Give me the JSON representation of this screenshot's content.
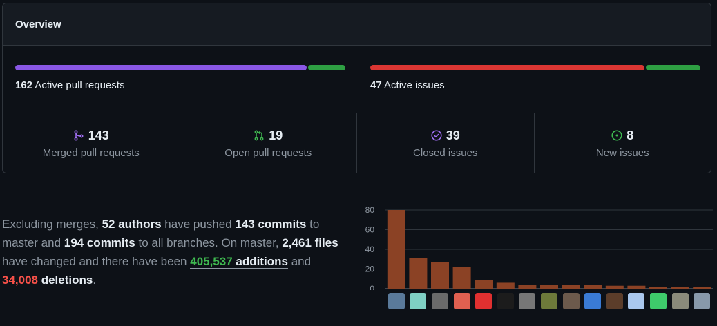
{
  "overview": {
    "title": "Overview",
    "pull_requests": {
      "count": "162",
      "label": "Active pull requests",
      "merged_fraction": 0.882,
      "colors": [
        "#8957e5",
        "#2ea043"
      ]
    },
    "issues": {
      "count": "47",
      "label": "Active issues",
      "closed_fraction": 0.83,
      "colors": [
        "#da3633",
        "#2ea043"
      ]
    },
    "stats": [
      {
        "value": "143",
        "label": "Merged pull requests",
        "icon": "merge-icon",
        "color": "#a371f7"
      },
      {
        "value": "19",
        "label": "Open pull requests",
        "icon": "pull-request-icon",
        "color": "#3fb950"
      },
      {
        "value": "39",
        "label": "Closed issues",
        "icon": "check-circle-icon",
        "color": "#a371f7"
      },
      {
        "value": "8",
        "label": "New issues",
        "icon": "issue-opened-icon",
        "color": "#3fb950"
      }
    ]
  },
  "summary": {
    "t1": "Excluding merges, ",
    "authors": "52 authors",
    "t2": " have pushed ",
    "commits_master": "143 commits",
    "t3": " to master and ",
    "commits_all": "194 commits",
    "t4": " to all branches. On master, ",
    "files": "2,461 files",
    "t5": " have changed and there have been ",
    "additions_num": "405,537",
    "additions_word": " additions",
    "t6": " and ",
    "deletions_num": "34,008",
    "deletions_word": " deletions",
    "t7": "."
  },
  "chart_data": {
    "type": "bar",
    "values": [
      80,
      31,
      27,
      22,
      9,
      6,
      4,
      4,
      4,
      4,
      3,
      3,
      2,
      2,
      2
    ],
    "y_ticks": [
      "0",
      "20",
      "40",
      "60",
      "80"
    ],
    "ylim": [
      0,
      80
    ],
    "bar_color": "#8b4225",
    "grid": true,
    "avatars": [
      "avatar-photo",
      "avatar-logo-T",
      "avatar-photo",
      "avatar-logo-S",
      "avatar-logo-CI",
      "avatar-pixel-art",
      "avatar-photo",
      "avatar-photo",
      "avatar-photo",
      "avatar-bot",
      "avatar-photo",
      "avatar-identicon",
      "avatar-identicon",
      "avatar-photo",
      "avatar-photo"
    ]
  }
}
